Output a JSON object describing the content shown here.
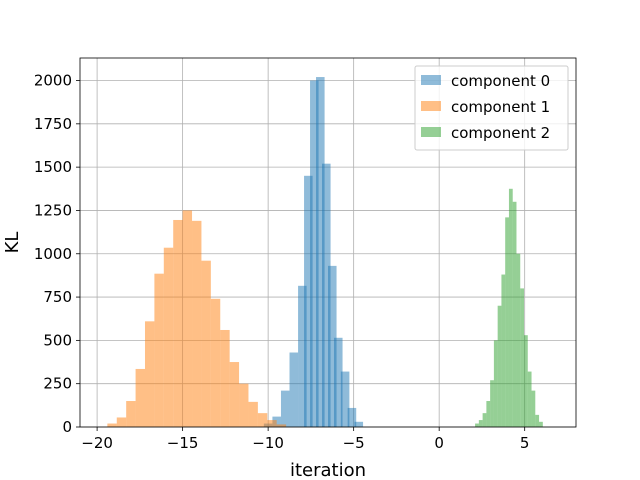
{
  "chart_data": {
    "type": "bar",
    "title": "",
    "xlabel": "iteration",
    "ylabel": "KL",
    "xlim": [
      -21,
      8
    ],
    "ylim": [
      0,
      2130
    ],
    "xticks": [
      -20,
      -15,
      -10,
      -5,
      0,
      5
    ],
    "yticks": [
      0,
      250,
      500,
      750,
      1000,
      1250,
      1500,
      1750,
      2000
    ],
    "grid": true,
    "legend_position": "top-right",
    "series": [
      {
        "name": "component 0",
        "color": "#1f77b4",
        "opacity": 0.5,
        "bin_width": 0.5,
        "bins": [
          {
            "x0": -10.25,
            "value": 20
          },
          {
            "x0": -9.75,
            "value": 60
          },
          {
            "x0": -9.25,
            "value": 210
          },
          {
            "x0": -8.75,
            "value": 430
          },
          {
            "x0": -8.25,
            "value": 815
          },
          {
            "x0": -7.9,
            "value": 1450
          },
          {
            "x0": -7.55,
            "value": 2000
          },
          {
            "x0": -7.2,
            "value": 2020
          },
          {
            "x0": -6.85,
            "value": 1520
          },
          {
            "x0": -6.5,
            "value": 930
          },
          {
            "x0": -6.15,
            "value": 515
          },
          {
            "x0": -5.75,
            "value": 320
          },
          {
            "x0": -5.35,
            "value": 110
          },
          {
            "x0": -4.95,
            "value": 30
          }
        ]
      },
      {
        "name": "component 1",
        "color": "#ff7f0e",
        "opacity": 0.5,
        "bin_width": 0.55,
        "bins": [
          {
            "x0": -19.4,
            "value": 20
          },
          {
            "x0": -18.85,
            "value": 55
          },
          {
            "x0": -18.3,
            "value": 150
          },
          {
            "x0": -17.75,
            "value": 335
          },
          {
            "x0": -17.2,
            "value": 610
          },
          {
            "x0": -16.65,
            "value": 885
          },
          {
            "x0": -16.1,
            "value": 1035
          },
          {
            "x0": -15.55,
            "value": 1195
          },
          {
            "x0": -15.0,
            "value": 1250
          },
          {
            "x0": -14.45,
            "value": 1190
          },
          {
            "x0": -13.9,
            "value": 960
          },
          {
            "x0": -13.35,
            "value": 740
          },
          {
            "x0": -12.8,
            "value": 560
          },
          {
            "x0": -12.25,
            "value": 375
          },
          {
            "x0": -11.7,
            "value": 250
          },
          {
            "x0": -11.15,
            "value": 145
          },
          {
            "x0": -10.6,
            "value": 80
          },
          {
            "x0": -10.05,
            "value": 40
          },
          {
            "x0": -9.5,
            "value": 15
          }
        ]
      },
      {
        "name": "component 2",
        "color": "#2ca02c",
        "opacity": 0.5,
        "bin_width": 0.22,
        "bins": [
          {
            "x0": 2.1,
            "value": 20
          },
          {
            "x0": 2.32,
            "value": 40
          },
          {
            "x0": 2.54,
            "value": 80
          },
          {
            "x0": 2.76,
            "value": 150
          },
          {
            "x0": 2.98,
            "value": 270
          },
          {
            "x0": 3.2,
            "value": 500
          },
          {
            "x0": 3.42,
            "value": 700
          },
          {
            "x0": 3.64,
            "value": 880
          },
          {
            "x0": 3.86,
            "value": 1210
          },
          {
            "x0": 4.08,
            "value": 1375
          },
          {
            "x0": 4.3,
            "value": 1300
          },
          {
            "x0": 4.52,
            "value": 1000
          },
          {
            "x0": 4.74,
            "value": 800
          },
          {
            "x0": 4.96,
            "value": 530
          },
          {
            "x0": 5.18,
            "value": 320
          },
          {
            "x0": 5.4,
            "value": 210
          },
          {
            "x0": 5.62,
            "value": 70
          },
          {
            "x0": 5.84,
            "value": 30
          }
        ]
      }
    ]
  }
}
